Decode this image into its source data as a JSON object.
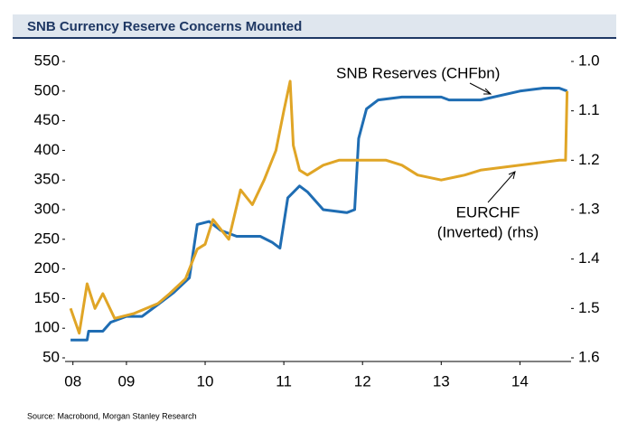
{
  "chart_data": {
    "type": "line",
    "title": "SNB Currency Reserve Concerns Mounted",
    "source": "Source: Macrobond, Morgan Stanley Research",
    "annotations": [
      "SNB Reserves (CHFbn)",
      "EURCHF",
      "(Inverted) (rhs)"
    ],
    "xlim": [
      2008.72,
      2015.15
    ],
    "xticks": [
      {
        "value": 2008.82,
        "label": "08"
      },
      {
        "value": 2009.5,
        "label": "09"
      },
      {
        "value": 2010.5,
        "label": "10"
      },
      {
        "value": 2011.5,
        "label": "11"
      },
      {
        "value": 2012.5,
        "label": "12"
      },
      {
        "value": 2013.5,
        "label": "13"
      },
      {
        "value": 2014.5,
        "label": "14"
      }
    ],
    "ylim": [
      50,
      550
    ],
    "yticks": [
      50,
      100,
      150,
      200,
      250,
      300,
      350,
      400,
      450,
      500,
      550
    ],
    "y2lim": [
      1.6,
      1.0
    ],
    "y2ticks": [
      {
        "value": 1.0,
        "label": "1.0"
      },
      1.1,
      1.2,
      1.3,
      1.4,
      1.5,
      1.6
    ],
    "series": [
      {
        "name": "SNB Reserves (CHFbn)",
        "color": "#1f6db3",
        "x": [
          2008.79,
          2009.0,
          2009.02,
          2009.2,
          2009.3,
          2009.5,
          2009.7,
          2009.9,
          2010.1,
          2010.3,
          2010.4,
          2010.55,
          2010.7,
          2010.9,
          2011.2,
          2011.35,
          2011.45,
          2011.55,
          2011.7,
          2011.8,
          2012.0,
          2012.3,
          2012.4,
          2012.45,
          2012.55,
          2012.7,
          2013.0,
          2013.5,
          2013.6,
          2014.0,
          2014.5,
          2014.8,
          2015.0,
          2015.1
        ],
        "values": [
          80,
          80,
          95,
          95,
          110,
          120,
          120,
          140,
          160,
          185,
          275,
          280,
          265,
          255,
          255,
          245,
          235,
          320,
          340,
          330,
          300,
          295,
          300,
          420,
          470,
          485,
          490,
          490,
          485,
          485,
          500,
          505,
          505,
          500
        ]
      },
      {
        "name": "EURCHF (Inverted) (rhs)",
        "color": "#e0a526",
        "axis": "y2",
        "x": [
          2008.79,
          2008.9,
          2009.0,
          2009.1,
          2009.2,
          2009.35,
          2009.6,
          2009.9,
          2010.05,
          2010.25,
          2010.4,
          2010.5,
          2010.6,
          2010.8,
          2010.95,
          2011.1,
          2011.25,
          2011.4,
          2011.5,
          2011.58,
          2011.62,
          2011.7,
          2011.8,
          2012.0,
          2012.2,
          2012.8,
          2013.0,
          2013.2,
          2013.5,
          2013.8,
          2014.0,
          2014.5,
          2015.0,
          2015.08,
          2015.1
        ],
        "values": [
          1.5,
          1.55,
          1.45,
          1.5,
          1.47,
          1.52,
          1.51,
          1.49,
          1.47,
          1.44,
          1.38,
          1.37,
          1.32,
          1.36,
          1.26,
          1.29,
          1.24,
          1.18,
          1.1,
          1.04,
          1.17,
          1.22,
          1.23,
          1.21,
          1.2,
          1.2,
          1.21,
          1.23,
          1.24,
          1.23,
          1.22,
          1.21,
          1.2,
          1.2,
          1.06
        ]
      }
    ]
  }
}
